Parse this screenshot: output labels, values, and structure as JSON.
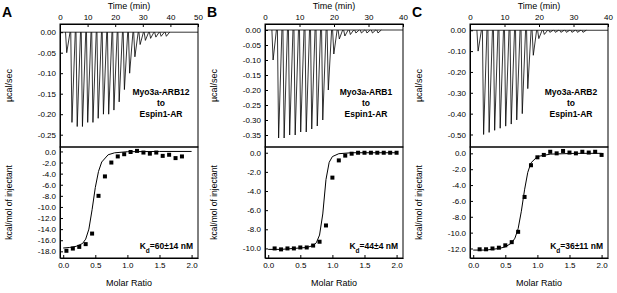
{
  "chart_data": [
    {
      "type": "line",
      "title": "A",
      "x_label": "Time (min)",
      "y_label": "µcal/sec",
      "color": "#000000",
      "xlim": [
        0,
        50
      ],
      "xticks": [
        0,
        10,
        20,
        30,
        40,
        50
      ],
      "ylim": [
        -0.28,
        0.02
      ],
      "yticks": [
        {
          "value": 0,
          "label": "0.00"
        },
        -0.05,
        {
          "value": -0.1,
          "label": "-0.10"
        },
        -0.15,
        {
          "value": -0.2,
          "label": "-0.20"
        },
        -0.25
      ],
      "baseline": 0,
      "x": [
        2.0,
        3.9,
        5.8,
        7.7,
        9.6,
        11.5,
        13.4,
        15.3,
        17.2,
        19.1,
        21.0,
        22.9,
        24.8,
        26.7,
        28.6,
        30.5,
        32.4,
        34.3,
        36.2,
        38.1
      ],
      "values": [
        -0.05,
        -0.22,
        -0.23,
        -0.23,
        -0.22,
        -0.22,
        -0.21,
        -0.2,
        -0.2,
        -0.19,
        -0.17,
        -0.14,
        -0.1,
        -0.06,
        -0.03,
        -0.02,
        -0.015,
        -0.012,
        -0.01,
        -0.01
      ],
      "annotations": [
        "Myo3a-ARB12",
        "to",
        "Espin1-AR"
      ]
    },
    {
      "type": "scatter",
      "x_label": "Molar Ratio",
      "y_label": "kcal/mol of injectant",
      "xlim": [
        -0.05,
        2.1
      ],
      "xticks": [
        {
          "value": 0,
          "label": "0.0"
        },
        {
          "value": 0.5,
          "label": "0.5"
        },
        {
          "value": 1,
          "label": "1.0"
        },
        {
          "value": 1.5,
          "label": "1.5"
        },
        {
          "value": 2,
          "label": "2.0"
        }
      ],
      "ylim": [
        -19.2,
        0.8
      ],
      "yticks": [
        {
          "value": 0,
          "label": "0.0"
        },
        {
          "value": -2,
          "label": "-2.0"
        },
        {
          "value": -4,
          "label": "-4.0"
        },
        {
          "value": -6,
          "label": "-6.0"
        },
        {
          "value": -8,
          "label": "-8.0"
        },
        {
          "value": -10,
          "label": "-10.0"
        },
        {
          "value": -12,
          "label": "-12.0"
        },
        {
          "value": -14,
          "label": "-14.0"
        },
        {
          "value": -16,
          "label": "-16.0"
        },
        {
          "value": -18,
          "label": "-18.0"
        }
      ],
      "series": [
        {
          "type": "scatter",
          "marker": "square",
          "color": "#000000",
          "x": [
            0.05,
            0.15,
            0.25,
            0.35,
            0.45,
            0.55,
            0.65,
            0.75,
            0.85,
            0.95,
            1.05,
            1.15,
            1.25,
            1.35,
            1.45,
            1.55,
            1.65,
            1.75,
            1.85
          ],
          "values": [
            -17.9,
            -17.5,
            -17.2,
            -16.7,
            -14.8,
            -8.0,
            -4.5,
            -2.0,
            -0.9,
            -0.5,
            -0.1,
            0.1,
            -0.2,
            -0.4,
            -0.2,
            -0.8,
            -0.6,
            -1.2,
            -0.9
          ]
        },
        {
          "type": "line",
          "line_style": "solid",
          "color": "#000000",
          "x": [
            0,
            0.1,
            0.2,
            0.3,
            0.35,
            0.4,
            0.45,
            0.5,
            0.55,
            0.6,
            0.7,
            0.8,
            1.0,
            1.5,
            2.0
          ],
          "values": [
            -17.4,
            -17.3,
            -17.1,
            -16.6,
            -15.8,
            -14.0,
            -10.5,
            -6.5,
            -3.6,
            -1.9,
            -0.6,
            -0.25,
            -0.05,
            0.0,
            0.0
          ]
        }
      ],
      "annotations": [
        "Kd=60±14 nM"
      ]
    },
    {
      "type": "line",
      "title": "B",
      "x_label": "Time (min)",
      "y_label": "µcal/sec",
      "color": "#000000",
      "xlim": [
        0,
        40
      ],
      "xticks": [
        0,
        10,
        20,
        30,
        40
      ],
      "ylim": [
        -0.39,
        0.02
      ],
      "yticks": [
        {
          "value": 0,
          "label": "0.00"
        },
        -0.05,
        {
          "value": -0.1,
          "label": "-0.10"
        },
        -0.15,
        {
          "value": -0.2,
          "label": "-0.20"
        },
        -0.25,
        {
          "value": -0.3,
          "label": "-0.30"
        },
        -0.35
      ],
      "baseline": 0,
      "x": [
        2.0,
        3.6,
        5.2,
        6.8,
        8.4,
        10.0,
        11.6,
        13.2,
        14.8,
        16.4,
        18.0,
        19.6,
        21.2,
        22.8,
        24.4,
        26.0,
        27.6,
        29.2,
        30.8,
        32.4
      ],
      "values": [
        -0.1,
        -0.36,
        -0.36,
        -0.35,
        -0.35,
        -0.34,
        -0.34,
        -0.33,
        -0.32,
        -0.3,
        -0.2,
        -0.08,
        -0.03,
        -0.02,
        -0.015,
        -0.01,
        -0.01,
        -0.01,
        -0.01,
        -0.01
      ],
      "annotations": [
        "Myo3a-ARB1",
        "to",
        "Espin1-AR"
      ]
    },
    {
      "type": "scatter",
      "x_label": "Molar Ratio",
      "y_label": "kcal/mol of injectant",
      "xlim": [
        -0.05,
        2.1
      ],
      "xticks": [
        {
          "value": 0,
          "label": "0.0"
        },
        {
          "value": 0.5,
          "label": "0.5"
        },
        {
          "value": 1,
          "label": "1.0"
        },
        {
          "value": 1.5,
          "label": "1.5"
        },
        {
          "value": 2,
          "label": "2.0"
        }
      ],
      "ylim": [
        -11.0,
        0.6
      ],
      "yticks": [
        {
          "value": 0,
          "label": "0.0"
        },
        {
          "value": -2,
          "label": "-2.0"
        },
        {
          "value": -4,
          "label": "-4.0"
        },
        {
          "value": -6,
          "label": "-6.0"
        },
        {
          "value": -8,
          "label": "-8.0"
        },
        {
          "value": -10,
          "label": "-10.0"
        }
      ],
      "series": [
        {
          "type": "scatter",
          "marker": "square",
          "color": "#000000",
          "x": [
            0.1,
            0.2,
            0.3,
            0.4,
            0.5,
            0.6,
            0.7,
            0.8,
            0.9,
            1.0,
            1.1,
            1.2,
            1.3,
            1.4,
            1.5,
            1.6,
            1.7,
            1.8,
            1.9,
            2.0
          ],
          "values": [
            -10.0,
            -10.1,
            -10.0,
            -10.0,
            -9.9,
            -9.9,
            -9.7,
            -9.3,
            -7.6,
            -2.6,
            -0.8,
            -0.3,
            -0.1,
            0.0,
            0.0,
            0.0,
            0.0,
            0.0,
            0.0,
            0.0
          ]
        },
        {
          "type": "line",
          "line_style": "solid",
          "color": "#000000",
          "x": [
            0,
            0.2,
            0.4,
            0.6,
            0.7,
            0.75,
            0.8,
            0.85,
            0.9,
            0.95,
            1.0,
            1.1,
            1.3,
            1.6,
            2.0
          ],
          "values": [
            -10.1,
            -10.1,
            -10.0,
            -9.9,
            -9.7,
            -9.4,
            -8.6,
            -6.4,
            -2.8,
            -1.0,
            -0.4,
            -0.1,
            0.0,
            0.0,
            0.0
          ]
        }
      ],
      "annotations": [
        "Kd=44±4 nM"
      ]
    },
    {
      "type": "line",
      "title": "C",
      "x_label": "Time (min)",
      "y_label": "µcal/sec",
      "color": "#000000",
      "xlim": [
        0,
        40
      ],
      "xticks": [
        0,
        10,
        20,
        30,
        40
      ],
      "ylim": [
        -0.56,
        0.03
      ],
      "yticks": [
        {
          "value": 0,
          "label": "0.00"
        },
        {
          "value": -0.1,
          "label": "-0.10"
        },
        {
          "value": -0.2,
          "label": "-0.20"
        },
        {
          "value": -0.3,
          "label": "-0.30"
        },
        {
          "value": -0.4,
          "label": "-0.40"
        },
        {
          "value": -0.5,
          "label": "-0.50"
        }
      ],
      "baseline": 0,
      "x": [
        2.0,
        3.6,
        5.2,
        6.8,
        8.4,
        10.0,
        11.6,
        13.2,
        14.8,
        16.4,
        18.0,
        19.6,
        21.2,
        22.8,
        24.4,
        26.0,
        27.6,
        29.2,
        30.8,
        32.4
      ],
      "values": [
        -0.1,
        -0.5,
        -0.49,
        -0.48,
        -0.47,
        -0.46,
        -0.45,
        -0.43,
        -0.4,
        -0.28,
        -0.12,
        -0.04,
        -0.02,
        -0.01,
        -0.01,
        -0.01,
        -0.01,
        -0.01,
        -0.01,
        -0.01
      ],
      "annotations": [
        "Myo3a-ARB2",
        "to",
        "Espin1-AR"
      ]
    },
    {
      "type": "scatter",
      "x_label": "Molar Ratio",
      "y_label": "kcal/mol of injectant",
      "xlim": [
        -0.05,
        2.1
      ],
      "xticks": [
        {
          "value": 0,
          "label": "0.0"
        },
        {
          "value": 0.5,
          "label": "0.5"
        },
        {
          "value": 1,
          "label": "1.0"
        },
        {
          "value": 1.5,
          "label": "1.5"
        },
        {
          "value": 2,
          "label": "2.0"
        }
      ],
      "ylim": [
        -13.2,
        0.8
      ],
      "yticks": [
        {
          "value": 0,
          "label": "0.0"
        },
        {
          "value": -2,
          "label": "-2.0"
        },
        {
          "value": -4,
          "label": "-4.0"
        },
        {
          "value": -6,
          "label": "-6.0"
        },
        {
          "value": -8,
          "label": "-8.0"
        },
        {
          "value": -10,
          "label": "-10.0"
        },
        {
          "value": -12,
          "label": "-12.0"
        }
      ],
      "series": [
        {
          "type": "scatter",
          "marker": "square",
          "color": "#000000",
          "x": [
            0.1,
            0.2,
            0.3,
            0.4,
            0.5,
            0.6,
            0.7,
            0.8,
            0.9,
            1.0,
            1.1,
            1.2,
            1.3,
            1.4,
            1.5,
            1.6,
            1.7,
            1.8,
            1.9,
            2.0
          ],
          "values": [
            -12.1,
            -12.1,
            -12.0,
            -11.9,
            -11.6,
            -11.2,
            -9.9,
            -5.5,
            -1.5,
            -0.5,
            -0.2,
            0.2,
            0.0,
            0.3,
            0.1,
            0.0,
            0.2,
            0.1,
            0.2,
            -0.2
          ]
        },
        {
          "type": "line",
          "line_style": "solid",
          "color": "#000000",
          "x": [
            0,
            0.2,
            0.4,
            0.5,
            0.6,
            0.65,
            0.7,
            0.75,
            0.8,
            0.85,
            0.9,
            1.0,
            1.2,
            1.6,
            2.0
          ],
          "values": [
            -12.2,
            -12.2,
            -12.0,
            -11.8,
            -11.3,
            -10.7,
            -9.5,
            -7.3,
            -4.6,
            -2.4,
            -1.2,
            -0.4,
            -0.1,
            0.0,
            0.0
          ]
        }
      ],
      "annotations": [
        "Kd=36±11 nM"
      ]
    }
  ]
}
